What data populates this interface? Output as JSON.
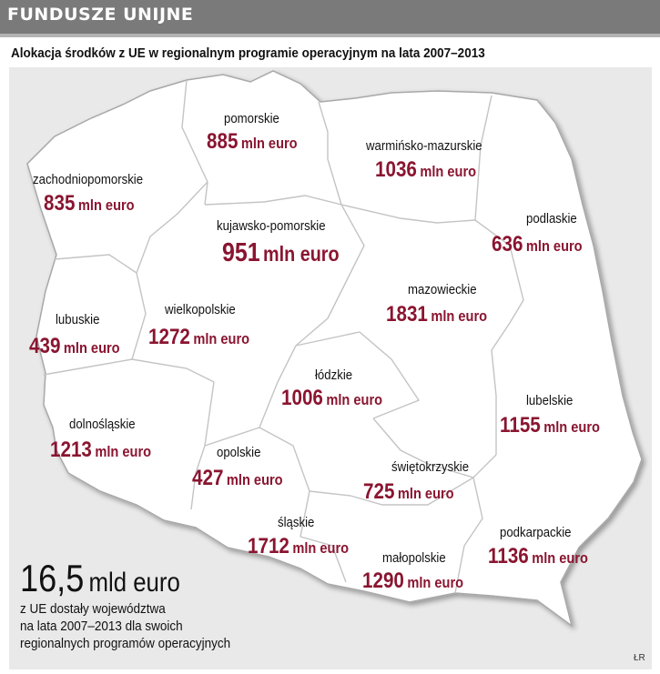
{
  "header": {
    "title": "FUNDUSZE UNIJNE"
  },
  "subtitle": "Alokacja środków z UE w regionalnym programie operacyjnym na lata 2007–2013",
  "colors": {
    "header": "#7a7a7a",
    "value_text": "#8a1530",
    "map_fill": "#ffffff",
    "background": "#e9e9e9"
  },
  "regions": [
    {
      "name": "pomorskie",
      "value": "885",
      "unit": "mln euro"
    },
    {
      "name": "warmińsko-mazurskie",
      "value": "1036",
      "unit": "mln euro"
    },
    {
      "name": "zachodniopomorskie",
      "value": "835",
      "unit": "mln euro"
    },
    {
      "name": "kujawsko-pomorskie",
      "value": "951",
      "unit": "mln euro"
    },
    {
      "name": "podlaskie",
      "value": "636",
      "unit": "mln euro"
    },
    {
      "name": "wielkopolskie",
      "value": "1272",
      "unit": "mln euro"
    },
    {
      "name": "mazowieckie",
      "value": "1831",
      "unit": "mln euro"
    },
    {
      "name": "lubuskie",
      "value": "439",
      "unit": "mln euro"
    },
    {
      "name": "łódzkie",
      "value": "1006",
      "unit": "mln euro"
    },
    {
      "name": "lubelskie",
      "value": "1155",
      "unit": "mln euro"
    },
    {
      "name": "dolnośląskie",
      "value": "1213",
      "unit": "mln euro"
    },
    {
      "name": "opolskie",
      "value": "427",
      "unit": "mln euro"
    },
    {
      "name": "świętokrzyskie",
      "value": "725",
      "unit": "mln euro"
    },
    {
      "name": "śląskie",
      "value": "1712",
      "unit": "mln euro"
    },
    {
      "name": "podkarpackie",
      "value": "1136",
      "unit": "mln euro"
    },
    {
      "name": "małopolskie",
      "value": "1290",
      "unit": "mln euro"
    }
  ],
  "total": {
    "value": "16,5",
    "unit": "mld euro",
    "caption": [
      "z UE dostały województwa",
      "na lata 2007–2013 dla swoich",
      "regionalnych programów operacyjnych"
    ]
  },
  "credit": "ŁR"
}
